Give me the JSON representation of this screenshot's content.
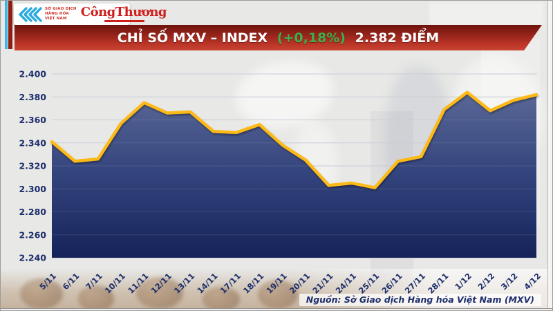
{
  "header": {
    "exchange_logo": {
      "line1": "SỞ GIAO DỊCH",
      "line2": "HÀNG HÓA",
      "line3": "VIỆT NAM"
    },
    "newspaper_logo": "CôngThương"
  },
  "banner": {
    "title_main": "CHỈ SỐ MXV – INDEX",
    "title_change": "(+0,18%)",
    "title_value": "2.382 ĐIỂM",
    "change_color": "#3db04b",
    "bg_color": "#b02e22"
  },
  "chart_data": {
    "type": "area",
    "title": "CHỈ SỐ MXV – INDEX",
    "x": [
      "5/11",
      "6/11",
      "7/11",
      "10/11",
      "11/11",
      "12/11",
      "13/11",
      "14/11",
      "17/11",
      "18/11",
      "19/11",
      "20/11",
      "21/11",
      "24/11",
      "25/11",
      "26/11",
      "27/11",
      "28/11",
      "1/12",
      "2/12",
      "3/12",
      "4/12"
    ],
    "series": [
      {
        "name": "MXV-Index",
        "values": [
          2341,
          2324,
          2326,
          2357,
          2375,
          2366,
          2367,
          2350,
          2349,
          2356,
          2338,
          2325,
          2303,
          2305,
          2301,
          2324,
          2328,
          2369,
          2384,
          2368,
          2377,
          2382
        ]
      }
    ],
    "ylim": [
      2240,
      2400
    ],
    "ytick_step": 20,
    "ytick_labels": [
      "2.240",
      "2.260",
      "2.280",
      "2.300",
      "2.320",
      "2.340",
      "2.360",
      "2.380",
      "2.400"
    ],
    "xlabel": "",
    "ylabel": "",
    "grid": true,
    "legend": "none",
    "line_color": "#fdb913",
    "fill_top": "#62709c",
    "fill_mid": "#33437c",
    "fill_bottom": "#15235a",
    "axis_label_color": "#1c2e6b"
  },
  "footer": {
    "source": "Nguồn: Sở Giao dịch Hàng hóa Việt Nam (MXV)"
  }
}
